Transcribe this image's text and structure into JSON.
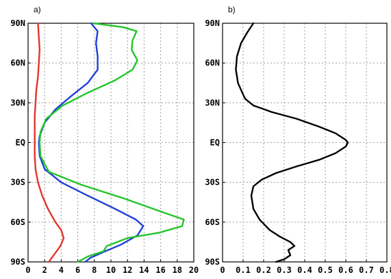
{
  "chart_data": [
    {
      "type": "line",
      "panel_label": "a)",
      "xlim": [
        0,
        20
      ],
      "ylim": [
        -90,
        90
      ],
      "x_ticks": [
        "0",
        "2",
        "4",
        "6",
        "8",
        "10",
        "12",
        "14",
        "16",
        "18",
        "20"
      ],
      "y_ticks": [
        "90N",
        "60N",
        "30N",
        "EQ",
        "30S",
        "60S",
        "90S"
      ],
      "grid": true,
      "series": [
        {
          "color": "#e0352b",
          "points": [
            [
              1.2,
              90
            ],
            [
              1.3,
              80
            ],
            [
              1.4,
              70
            ],
            [
              1.3,
              60
            ],
            [
              1.2,
              50
            ],
            [
              1.0,
              40
            ],
            [
              0.9,
              30
            ],
            [
              0.8,
              20
            ],
            [
              0.8,
              10
            ],
            [
              0.8,
              0
            ],
            [
              0.8,
              -10
            ],
            [
              0.9,
              -20
            ],
            [
              1.2,
              -30
            ],
            [
              1.7,
              -40
            ],
            [
              2.4,
              -50
            ],
            [
              3.3,
              -60
            ],
            [
              4.0,
              -66
            ],
            [
              4.3,
              -72
            ],
            [
              3.9,
              -78
            ],
            [
              3.2,
              -84
            ],
            [
              2.5,
              -90
            ]
          ]
        },
        {
          "color": "#1f3fd6",
          "points": [
            [
              7.6,
              90
            ],
            [
              8.4,
              84
            ],
            [
              8.2,
              75
            ],
            [
              8.4,
              65
            ],
            [
              8.4,
              55
            ],
            [
              7.2,
              45
            ],
            [
              5.2,
              35
            ],
            [
              3.3,
              25
            ],
            [
              2.0,
              15
            ],
            [
              1.4,
              5
            ],
            [
              1.3,
              0
            ],
            [
              1.4,
              -10
            ],
            [
              2.0,
              -20
            ],
            [
              4.0,
              -30
            ],
            [
              7.2,
              -40
            ],
            [
              10.5,
              -50
            ],
            [
              13.0,
              -58
            ],
            [
              13.9,
              -63
            ],
            [
              13.2,
              -70
            ],
            [
              11.2,
              -77
            ],
            [
              9.3,
              -82
            ],
            [
              7.5,
              -87
            ],
            [
              6.9,
              -90
            ]
          ]
        },
        {
          "color": "#22c42a",
          "points": [
            [
              7.9,
              90
            ],
            [
              11.5,
              87
            ],
            [
              13.1,
              84
            ],
            [
              12.6,
              77
            ],
            [
              12.5,
              70
            ],
            [
              13.2,
              62
            ],
            [
              12.6,
              55
            ],
            [
              10.5,
              47
            ],
            [
              7.0,
              37
            ],
            [
              4.2,
              28
            ],
            [
              2.2,
              18
            ],
            [
              1.5,
              8
            ],
            [
              1.4,
              0
            ],
            [
              1.5,
              -10
            ],
            [
              2.5,
              -22
            ],
            [
              6.5,
              -32
            ],
            [
              11.5,
              -42
            ],
            [
              16.0,
              -52
            ],
            [
              18.8,
              -58
            ],
            [
              18.6,
              -63
            ],
            [
              15.8,
              -68
            ],
            [
              12.0,
              -72
            ],
            [
              9.5,
              -78
            ],
            [
              9.1,
              -82
            ],
            [
              7.2,
              -86
            ],
            [
              6.0,
              -90
            ]
          ]
        }
      ]
    },
    {
      "type": "line",
      "panel_label": "b)",
      "xlim": [
        0,
        0.8
      ],
      "ylim": [
        -90,
        90
      ],
      "x_ticks": [
        "0",
        "0.1",
        "0.2",
        "0.3",
        "0.4",
        "0.5",
        "0.6",
        "0.7",
        "0.8"
      ],
      "y_ticks": [
        "90N",
        "60N",
        "30N",
        "EQ",
        "30S",
        "60S",
        "90S"
      ],
      "grid": true,
      "series": [
        {
          "color": "#000000",
          "points": [
            [
              0.15,
              90
            ],
            [
              0.12,
              83
            ],
            [
              0.09,
              75
            ],
            [
              0.07,
              65
            ],
            [
              0.065,
              55
            ],
            [
              0.075,
              45
            ],
            [
              0.095,
              38
            ],
            [
              0.11,
              33
            ],
            [
              0.15,
              28
            ],
            [
              0.24,
              23
            ],
            [
              0.36,
              18
            ],
            [
              0.47,
              12
            ],
            [
              0.55,
              7
            ],
            [
              0.6,
              2
            ],
            [
              0.61,
              0
            ],
            [
              0.6,
              -3
            ],
            [
              0.55,
              -8
            ],
            [
              0.47,
              -13
            ],
            [
              0.36,
              -18
            ],
            [
              0.26,
              -23
            ],
            [
              0.19,
              -28
            ],
            [
              0.15,
              -33
            ],
            [
              0.14,
              -40
            ],
            [
              0.15,
              -50
            ],
            [
              0.18,
              -58
            ],
            [
              0.23,
              -66
            ],
            [
              0.28,
              -71
            ],
            [
              0.33,
              -75
            ],
            [
              0.35,
              -78
            ],
            [
              0.32,
              -81
            ],
            [
              0.33,
              -85
            ],
            [
              0.3,
              -88
            ],
            [
              0.26,
              -90
            ]
          ]
        }
      ]
    }
  ]
}
